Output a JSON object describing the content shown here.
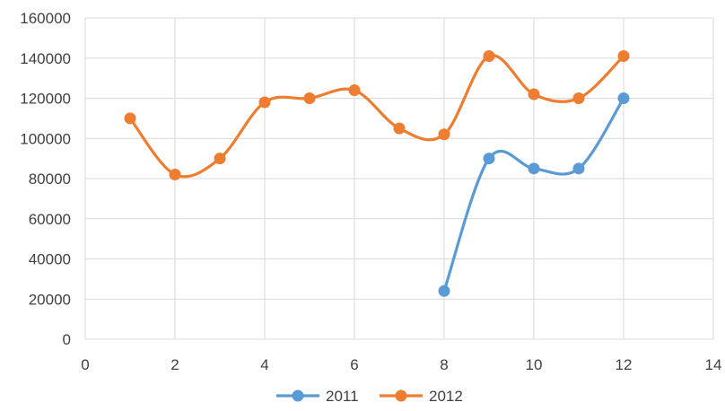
{
  "chart_data": {
    "type": "scatter",
    "title": "",
    "xlabel": "",
    "ylabel": "",
    "xlim": [
      0,
      14
    ],
    "ylim": [
      0,
      160000
    ],
    "xticks": [
      0,
      2,
      4,
      6,
      8,
      10,
      12,
      14
    ],
    "yticks": [
      0,
      20000,
      40000,
      60000,
      80000,
      100000,
      120000,
      140000,
      160000
    ],
    "xtick_labels": [
      "0",
      "2",
      "4",
      "6",
      "8",
      "10",
      "12",
      "14"
    ],
    "ytick_labels": [
      "0",
      "20000",
      "40000",
      "60000",
      "80000",
      "100000",
      "120000",
      "140000",
      "160000"
    ],
    "grid": true,
    "smooth_lines": true,
    "legend_position": "bottom",
    "series": [
      {
        "name": "2011",
        "color": "#5b9bd5",
        "x": [
          8,
          9,
          10,
          11,
          12
        ],
        "y": [
          24000,
          90000,
          85000,
          85000,
          120000
        ]
      },
      {
        "name": "2012",
        "color": "#ed7d31",
        "x": [
          1,
          2,
          3,
          4,
          5,
          6,
          7,
          8,
          9,
          10,
          11,
          12
        ],
        "y": [
          110000,
          82000,
          90000,
          118000,
          120000,
          124000,
          105000,
          102000,
          141000,
          122000,
          120000,
          141000
        ]
      }
    ]
  }
}
